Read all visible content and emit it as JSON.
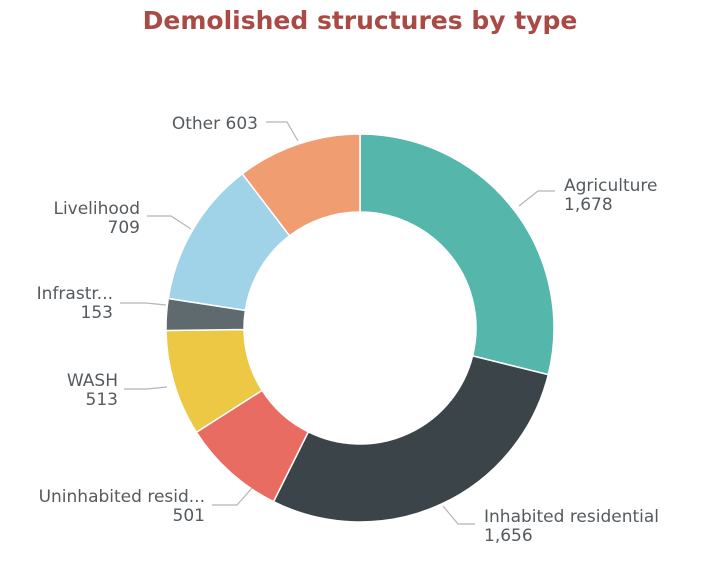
{
  "chart_data": {
    "type": "pie",
    "title": "Demolished structures by type",
    "series": [
      {
        "name": "Agriculture",
        "label": "Agriculture",
        "value": 1678,
        "value_label": "1,678",
        "color": "#55B6AB"
      },
      {
        "name": "Inhabited residential",
        "label": "Inhabited residential",
        "value": 1656,
        "value_label": "1,656",
        "color": "#3B4549"
      },
      {
        "name": "Uninhabited residential",
        "label": "Uninhabited resid...",
        "value": 501,
        "value_label": "501",
        "color": "#E96C62"
      },
      {
        "name": "WASH",
        "label": "WASH",
        "value": 513,
        "value_label": "513",
        "color": "#ECC844"
      },
      {
        "name": "Infrastructure",
        "label": "Infrastr...",
        "value": 153,
        "value_label": "153",
        "color": "#5F6A6E"
      },
      {
        "name": "Livelihood",
        "label": "Livelihood",
        "value": 709,
        "value_label": "709",
        "color": "#A0D3E8"
      },
      {
        "name": "Other",
        "label": "Other",
        "value": 603,
        "value_label": "603",
        "color": "#F09D72",
        "inline": true
      }
    ]
  }
}
